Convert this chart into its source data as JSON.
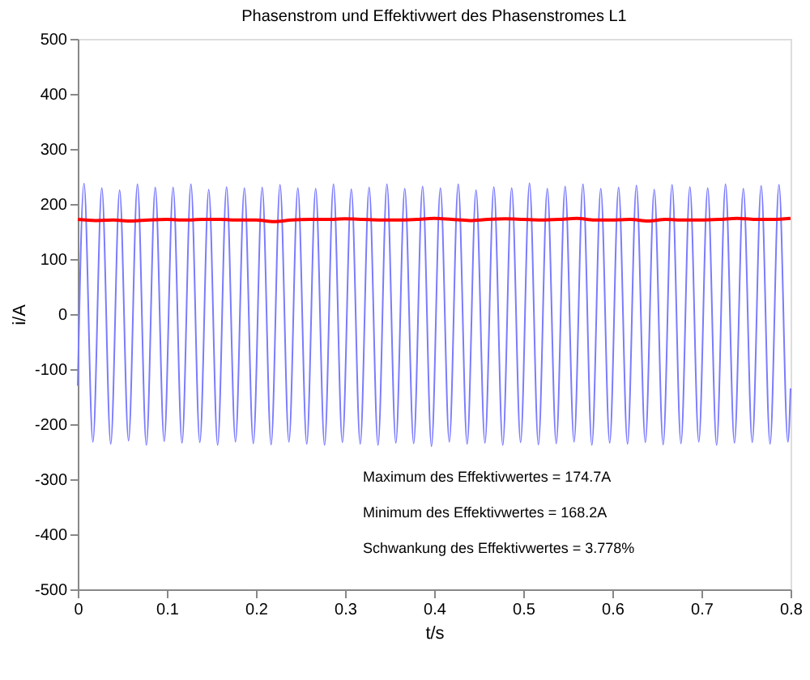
{
  "chart_data": {
    "type": "line",
    "title": "Phasenstrom und Effektivwert des Phasenstromes L1",
    "xlabel": "t/s",
    "ylabel": "i/A",
    "xlim": [
      0,
      0.8
    ],
    "xticks": [
      0,
      0.1,
      0.2,
      0.3,
      0.4,
      0.5,
      0.6,
      0.7,
      0.8
    ],
    "ylim": [
      -500,
      500
    ],
    "yticks": [
      -500,
      -400,
      -300,
      -200,
      -100,
      0,
      100,
      200,
      300,
      400,
      500
    ],
    "grid": false,
    "marker": "none",
    "line_style": "solid",
    "series": [
      {
        "color": "#7b7bff",
        "x": [
          0,
          0.007,
          0.017,
          0.027,
          0.037,
          0.047,
          0.057,
          0.067,
          0.077,
          0.087,
          0.097,
          0.107,
          0.117,
          0.127,
          0.137,
          0.147,
          0.157,
          0.167,
          0.177,
          0.187,
          0.197,
          0.207,
          0.217,
          0.227,
          0.237,
          0.247,
          0.257,
          0.267,
          0.277,
          0.287,
          0.297,
          0.307,
          0.317,
          0.327,
          0.337,
          0.347,
          0.357,
          0.367,
          0.377,
          0.387,
          0.397,
          0.407,
          0.417,
          0.427,
          0.437,
          0.447,
          0.457,
          0.467,
          0.477,
          0.487,
          0.497,
          0.507,
          0.517,
          0.527,
          0.537,
          0.547,
          0.557,
          0.567,
          0.577,
          0.587,
          0.597,
          0.607,
          0.617,
          0.627,
          0.637,
          0.647,
          0.657,
          0.667,
          0.677,
          0.687,
          0.697,
          0.707,
          0.717,
          0.727,
          0.737,
          0.747,
          0.757,
          0.767,
          0.777,
          0.787,
          0.797,
          0.8
        ],
        "values": [
          -130,
          237,
          -232,
          229,
          -236,
          225,
          -230,
          236,
          -238,
          230,
          -231,
          230,
          -234,
          236,
          -233,
          226,
          -238,
          231,
          -232,
          229,
          -235,
          230,
          -237,
          235,
          -232,
          229,
          -236,
          228,
          -238,
          236,
          -233,
          227,
          -236,
          230,
          -238,
          236,
          -234,
          228,
          -235,
          232,
          -240,
          229,
          -232,
          236,
          -236,
          225,
          -234,
          231,
          -238,
          229,
          -233,
          238,
          -237,
          228,
          -235,
          232,
          -232,
          236,
          -238,
          228,
          -234,
          230,
          -236,
          234,
          -233,
          226,
          -237,
          235,
          -235,
          231,
          -232,
          229,
          -238,
          236,
          -234,
          228,
          -233,
          233,
          -236,
          235,
          -232,
          -135
        ]
      },
      {
        "color": "#ff0000",
        "x": [
          0,
          0.02,
          0.04,
          0.06,
          0.08,
          0.1,
          0.12,
          0.14,
          0.16,
          0.18,
          0.2,
          0.22,
          0.24,
          0.26,
          0.28,
          0.3,
          0.32,
          0.34,
          0.36,
          0.38,
          0.4,
          0.42,
          0.44,
          0.46,
          0.48,
          0.5,
          0.52,
          0.54,
          0.56,
          0.58,
          0.6,
          0.62,
          0.64,
          0.66,
          0.68,
          0.7,
          0.72,
          0.74,
          0.76,
          0.78,
          0.8
        ],
        "values": [
          172,
          170,
          171,
          169,
          171,
          172,
          171,
          172,
          172,
          171,
          171,
          168,
          171,
          172,
          172,
          173,
          172,
          171,
          171,
          172,
          174,
          172,
          170,
          172,
          173,
          172,
          171,
          172,
          174,
          171,
          171,
          172,
          169,
          172,
          171,
          171,
          172,
          174,
          172,
          172,
          174
        ]
      }
    ],
    "annotations": [
      "Maximum des Effektivwertes = 174.7A",
      "Minimum des Effektivwertes = 168.2A",
      "Schwankung des Effektivwertes = 3.778%"
    ]
  }
}
